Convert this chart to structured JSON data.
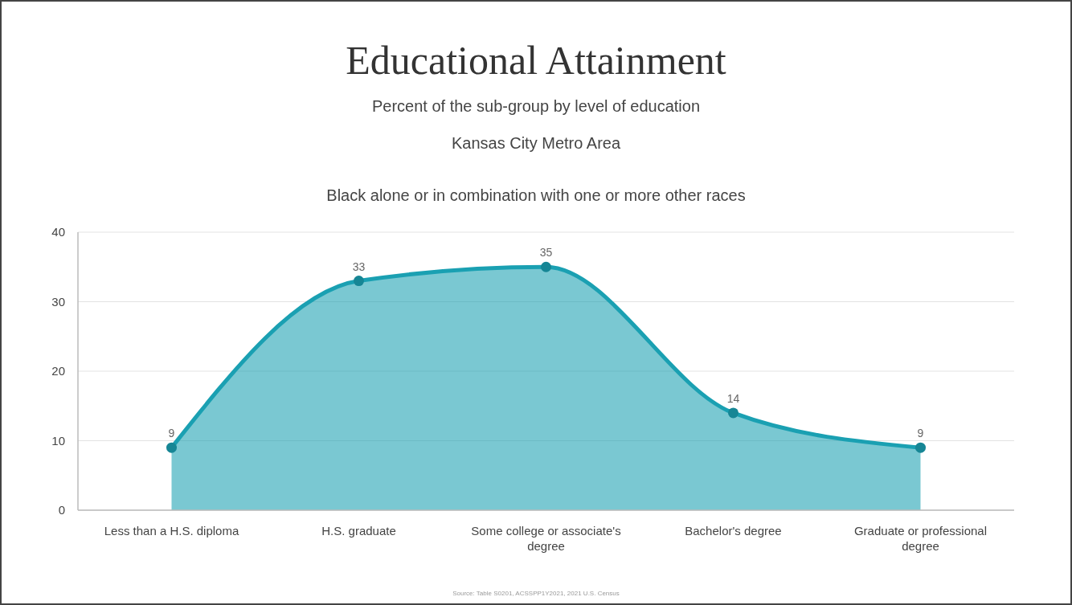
{
  "chart_data": {
    "type": "area",
    "title": "Educational Attainment",
    "subtitle": "Percent of the sub-group by level of education",
    "annotations": [
      "Kansas City Metro Area",
      "Black alone or in combination with one or more other races",
      "Source: Table S0201, ACSSPP1Y2021, 2021 U.S. Census"
    ],
    "categories": [
      "Less than a H.S. diploma",
      "H.S. graduate",
      "Some college or associate's degree",
      "Bachelor's degree",
      "Graduate or professional degree"
    ],
    "series": [
      {
        "color": "#1aa0b2",
        "values": [
          9,
          33,
          35,
          14,
          9
        ]
      }
    ],
    "ylim": [
      0,
      40
    ],
    "yticks": [
      0,
      10,
      20,
      30,
      40
    ],
    "grid": "y",
    "marker": "circle",
    "data_labels": true
  }
}
